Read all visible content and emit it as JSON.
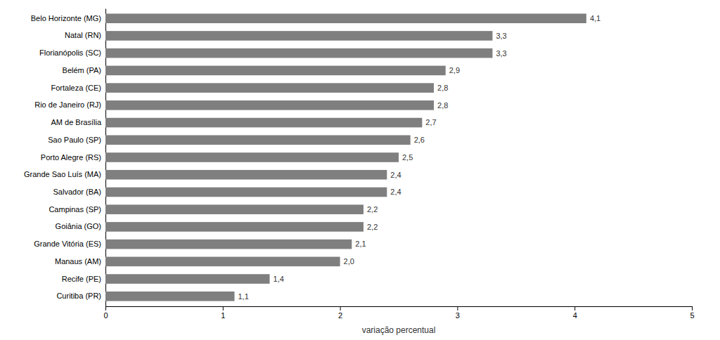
{
  "chart_data": {
    "type": "bar",
    "orientation": "horizontal",
    "categories": [
      "Belo Horizonte (MG)",
      "Natal (RN)",
      "Florianópolis (SC)",
      "Belém (PA)",
      "Fortaleza (CE)",
      "Rio de Janeiro (RJ)",
      "AM de Brasília",
      "Sao Paulo (SP)",
      "Porto Alegre (RS)",
      "Grande Sao Luís (MA)",
      "Salvador (BA)",
      "Campinas (SP)",
      "Goiânia (GO)",
      "Grande Vitória (ES)",
      "Manaus (AM)",
      "Recife (PE)",
      "Curitiba (PR)"
    ],
    "values": [
      4.1,
      3.3,
      3.3,
      2.9,
      2.8,
      2.8,
      2.7,
      2.6,
      2.5,
      2.4,
      2.4,
      2.2,
      2.2,
      2.1,
      2.0,
      1.4,
      1.1
    ],
    "value_labels": [
      "4,1",
      "3,3",
      "3,3",
      "2,9",
      "2,8",
      "2,8",
      "2,7",
      "2,6",
      "2,5",
      "2,4",
      "2,4",
      "2,2",
      "2,2",
      "2,1",
      "2,0",
      "1,4",
      "1,1"
    ],
    "data_labels": true,
    "color": "#7f7f7f",
    "xlabel": "variação percentual",
    "xlim": [
      0,
      5
    ],
    "xticks": [
      0,
      1,
      2,
      3,
      4,
      5
    ],
    "grid": false
  }
}
